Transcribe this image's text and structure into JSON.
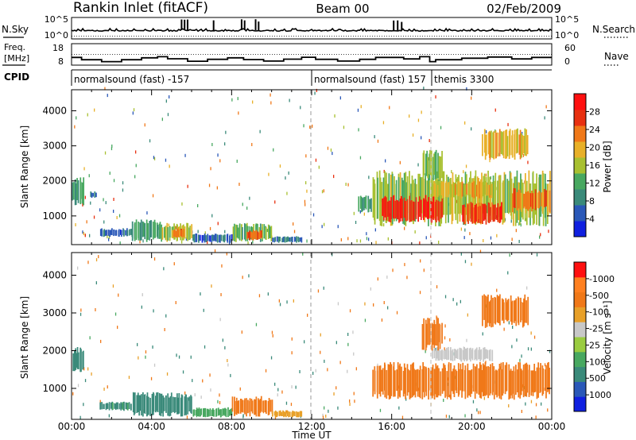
{
  "header": {
    "station": "Rankin Inlet (fitACF)",
    "beam": "Beam 00",
    "date": "02/Feb/2009"
  },
  "nsky_panel": {
    "left_label": "N.Sky",
    "right_label": "N.Search",
    "left_ticks": [
      "10^5",
      "10^0"
    ],
    "right_ticks": [
      "10^5",
      "10^0"
    ],
    "spikes_hours": [
      5.5,
      5.65,
      5.8,
      7.1,
      8.5,
      8.65,
      9.2,
      9.35,
      16.1,
      16.3,
      16.5
    ]
  },
  "freq_panel": {
    "left_label_1": "Freq.",
    "left_label_2": "[MHz]",
    "right_label": "Nave",
    "left_ticks": [
      "18",
      "8"
    ],
    "right_ticks": [
      "60",
      "0"
    ],
    "freq_steps": [
      {
        "t0": 0,
        "t1": 0.5,
        "v": 11.2
      },
      {
        "t0": 0.5,
        "t1": 1.5,
        "v": 10.0
      },
      {
        "t0": 1.5,
        "t1": 2.5,
        "v": 9.0
      },
      {
        "t0": 2.5,
        "t1": 3.5,
        "v": 10.0
      },
      {
        "t0": 3.5,
        "t1": 4.3,
        "v": 11.0
      },
      {
        "t0": 4.3,
        "t1": 4.8,
        "v": 11.6
      },
      {
        "t0": 4.8,
        "t1": 5.8,
        "v": 10.5
      },
      {
        "t0": 5.8,
        "t1": 6.8,
        "v": 9.2
      },
      {
        "t0": 6.8,
        "t1": 7.8,
        "v": 10.2
      },
      {
        "t0": 7.8,
        "t1": 8.6,
        "v": 11.0
      },
      {
        "t0": 8.6,
        "t1": 9.6,
        "v": 10.1
      },
      {
        "t0": 9.6,
        "t1": 10.6,
        "v": 9.3
      },
      {
        "t0": 10.6,
        "t1": 11.5,
        "v": 10.3
      },
      {
        "t0": 11.5,
        "t1": 12.2,
        "v": 11.3
      },
      {
        "t0": 12.2,
        "t1": 13.3,
        "v": 10.2
      },
      {
        "t0": 13.3,
        "t1": 14.4,
        "v": 9.3
      },
      {
        "t0": 14.4,
        "t1": 15.2,
        "v": 10.2
      },
      {
        "t0": 15.2,
        "t1": 16.6,
        "v": 11.2
      },
      {
        "t0": 16.6,
        "t1": 17.4,
        "v": 10.4
      },
      {
        "t0": 17.4,
        "t1": 17.9,
        "v": 11.6
      },
      {
        "t0": 17.9,
        "t1": 18.2,
        "v": 9.0
      },
      {
        "t0": 18.2,
        "t1": 19.5,
        "v": 10.0
      },
      {
        "t0": 19.5,
        "t1": 20.8,
        "v": 10.8
      },
      {
        "t0": 20.8,
        "t1": 22.0,
        "v": 11.4
      },
      {
        "t0": 22.0,
        "t1": 23.0,
        "v": 10.4
      },
      {
        "t0": 23.0,
        "t1": 24.0,
        "v": 11.2
      }
    ]
  },
  "cpid_panel": {
    "label": "CPID",
    "segments": [
      {
        "t0": 0,
        "name": "normalsound (fast) -157"
      },
      {
        "t0": 12,
        "name": "normalsound (fast) 157"
      },
      {
        "t0": 18,
        "name": "themis 3300"
      }
    ]
  },
  "colors": {
    "power_scale": [
      "#1020e0",
      "#2a58b8",
      "#3a8a7a",
      "#48a860",
      "#a8c030",
      "#e8b028",
      "#f07818",
      "#e83010",
      "#ff1010"
    ],
    "velocity_scale": [
      "#1020e0",
      "#2a58b8",
      "#3a8a7a",
      "#48a860",
      "#9acc40",
      "#c8c8c8",
      "#e8a028",
      "#f07818",
      "#ff8020",
      "#ff1010"
    ]
  },
  "chart_data": [
    {
      "type": "heatmap",
      "title": "",
      "xlabel": "Time UT",
      "ylabel": "Slant Range [km]",
      "xlim": [
        0,
        24
      ],
      "ylim": [
        180,
        4600
      ],
      "xticks": [
        "00:00",
        "04:00",
        "08:00",
        "12:00",
        "16:00",
        "20:00",
        "00:00"
      ],
      "yticks": [
        1000,
        2000,
        3000,
        4000
      ],
      "colorbar": {
        "label": "Power [dB]",
        "ticks": [
          "4",
          "8",
          "12",
          "16",
          "20",
          "24",
          "28"
        ],
        "range": [
          0,
          30
        ]
      },
      "regions": [
        {
          "t0": 0.0,
          "t1": 0.6,
          "r0": 1300,
          "r1": 2100,
          "value": 8
        },
        {
          "t0": 0.9,
          "t1": 1.2,
          "r0": 1500,
          "r1": 1700,
          "value": 7
        },
        {
          "t0": 1.4,
          "t1": 3.0,
          "r0": 400,
          "r1": 650,
          "value": 6
        },
        {
          "t0": 3.0,
          "t1": 4.5,
          "r0": 250,
          "r1": 900,
          "value": 10
        },
        {
          "t0": 4.5,
          "t1": 6.0,
          "r0": 250,
          "r1": 800,
          "value": 15
        },
        {
          "t0": 5.0,
          "t1": 5.6,
          "r0": 350,
          "r1": 650,
          "value": 22
        },
        {
          "t0": 6.0,
          "t1": 8.0,
          "r0": 230,
          "r1": 500,
          "value": 6
        },
        {
          "t0": 8.0,
          "t1": 10.0,
          "r0": 250,
          "r1": 800,
          "value": 12
        },
        {
          "t0": 8.7,
          "t1": 9.5,
          "r0": 300,
          "r1": 600,
          "value": 23
        },
        {
          "t0": 10.0,
          "t1": 11.5,
          "r0": 230,
          "r1": 420,
          "value": 6
        },
        {
          "t0": 14.3,
          "t1": 15.0,
          "r0": 1100,
          "r1": 1600,
          "value": 9
        },
        {
          "t0": 15.0,
          "t1": 23.9,
          "r0": 700,
          "r1": 2300,
          "value": 15
        },
        {
          "t0": 15.5,
          "t1": 18.5,
          "r0": 800,
          "r1": 1600,
          "value": 26
        },
        {
          "t0": 19.5,
          "t1": 21.5,
          "r0": 750,
          "r1": 1400,
          "value": 25
        },
        {
          "t0": 22.0,
          "t1": 23.9,
          "r0": 1100,
          "r1": 1800,
          "value": 22
        },
        {
          "t0": 17.5,
          "t1": 18.5,
          "r0": 2000,
          "r1": 2900,
          "value": 13
        },
        {
          "t0": 18.0,
          "t1": 21.0,
          "r0": 1500,
          "r1": 2000,
          "value": 18
        },
        {
          "t0": 20.5,
          "t1": 22.8,
          "r0": 2600,
          "r1": 3500,
          "value": 18
        }
      ]
    },
    {
      "type": "heatmap",
      "title": "",
      "xlabel": "Time UT",
      "ylabel": "Slant Range [km]",
      "xlim": [
        0,
        24
      ],
      "ylim": [
        180,
        4600
      ],
      "xticks": [
        "00:00",
        "04:00",
        "08:00",
        "12:00",
        "16:00",
        "20:00",
        "00:00"
      ],
      "yticks": [
        1000,
        2000,
        3000,
        4000
      ],
      "colorbar": {
        "label": "Velocity [m s⁻¹]",
        "ticks": [
          "1000",
          "500",
          "100",
          "25",
          "-25",
          "-100",
          "-500",
          "-1000"
        ],
        "range": [
          -1200,
          1200
        ]
      },
      "regions": [
        {
          "t0": 0.0,
          "t1": 0.6,
          "r0": 1400,
          "r1": 2100,
          "value": 150
        },
        {
          "t0": 1.4,
          "t1": 3.0,
          "r0": 400,
          "r1": 650,
          "value": 120
        },
        {
          "t0": 3.0,
          "t1": 6.0,
          "r0": 250,
          "r1": 900,
          "value": 200
        },
        {
          "t0": 6.0,
          "t1": 8.0,
          "r0": 230,
          "r1": 500,
          "value": 80
        },
        {
          "t0": 8.0,
          "t1": 10.0,
          "r0": 250,
          "r1": 800,
          "value": -150
        },
        {
          "t0": 10.0,
          "t1": 11.5,
          "r0": 230,
          "r1": 420,
          "value": -60
        },
        {
          "t0": 15.0,
          "t1": 23.9,
          "r0": 700,
          "r1": 1700,
          "value": -350
        },
        {
          "t0": 18.0,
          "t1": 21.0,
          "r0": 1700,
          "r1": 2100,
          "value": 0
        },
        {
          "t0": 17.5,
          "t1": 18.5,
          "r0": 2000,
          "r1": 2900,
          "value": -250
        },
        {
          "t0": 20.5,
          "t1": 22.8,
          "r0": 2600,
          "r1": 3500,
          "value": -250
        }
      ]
    }
  ]
}
